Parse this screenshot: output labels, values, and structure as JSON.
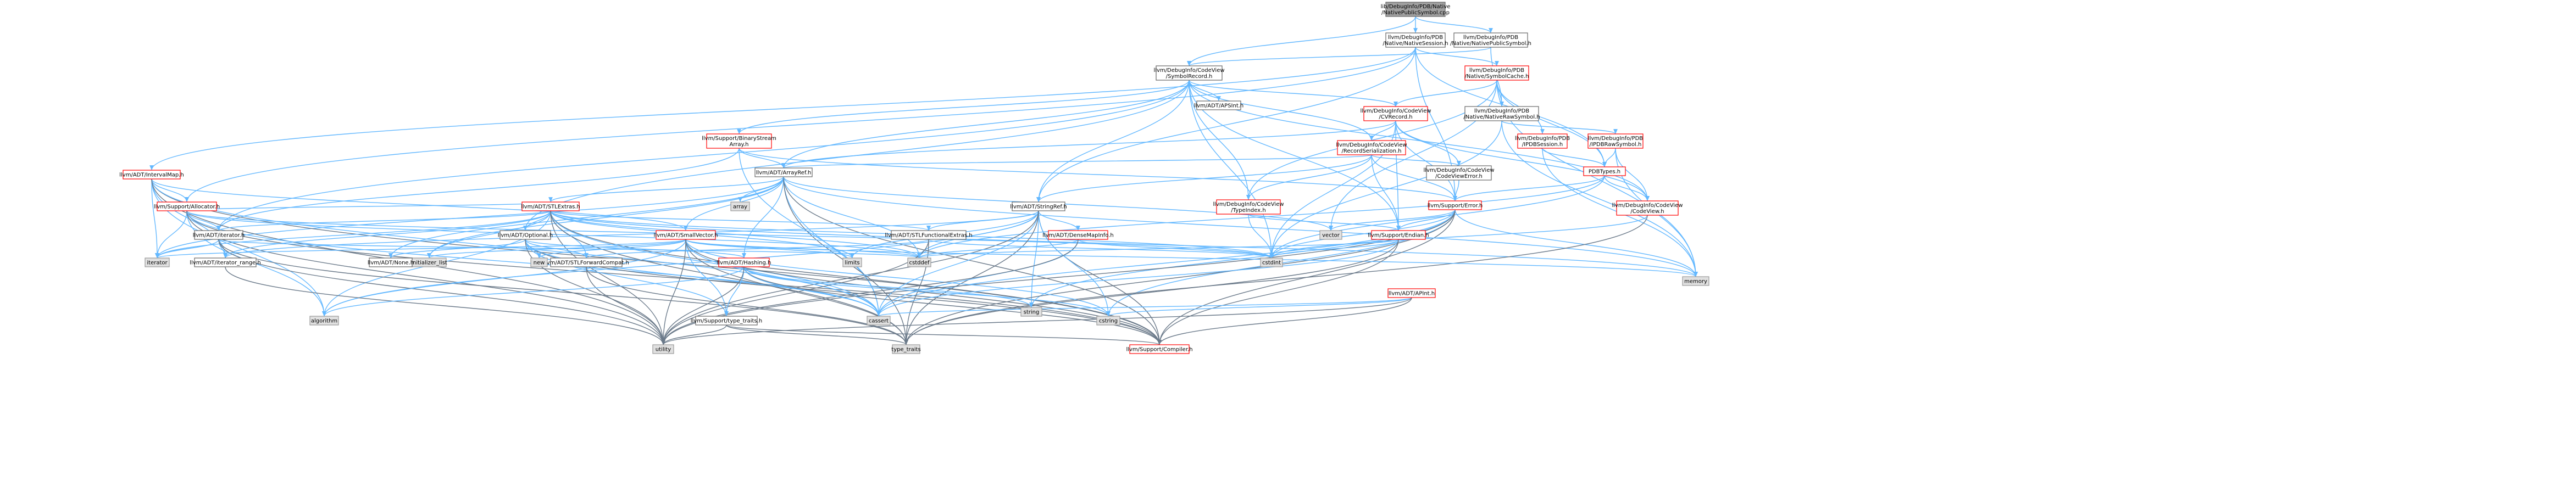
{
  "graph": {
    "nodes": [
      {
        "id": "root",
        "lines": [
          "lib/DebugInfo/PDB/Native",
          "/NativePublicSymbol.cpp"
        ],
        "style": "root"
      },
      {
        "id": "nativesession",
        "lines": [
          "llvm/DebugInfo/PDB",
          "/Native/NativeSession.h"
        ],
        "style": "normal"
      },
      {
        "id": "nativepublicsymbol",
        "lines": [
          "llvm/DebugInfo/PDB",
          "/Native/NativePublicSymbol.h"
        ],
        "style": "normal"
      },
      {
        "id": "symbolrecord",
        "lines": [
          "llvm/DebugInfo/CodeView",
          "/SymbolRecord.h"
        ],
        "style": "normal"
      },
      {
        "id": "symbolcache",
        "lines": [
          "llvm/DebugInfo/PDB",
          "/Native/SymbolCache.h"
        ],
        "style": "red"
      },
      {
        "id": "nativerawsymbol",
        "lines": [
          "llvm/DebugInfo/PDB",
          "/Native/NativeRawSymbol.h"
        ],
        "style": "normal"
      },
      {
        "id": "intervalmap",
        "lines": [
          "llvm/ADT/IntervalMap.h"
        ],
        "style": "red"
      },
      {
        "id": "apsint",
        "lines": [
          "llvm/ADT/APSInt.h"
        ],
        "style": "normal"
      },
      {
        "id": "cvrecord",
        "lines": [
          "llvm/DebugInfo/CodeView",
          "/CVRecord.h"
        ],
        "style": "red"
      },
      {
        "id": "ipdbsession",
        "lines": [
          "llvm/DebugInfo/PDB",
          "/IPDBSession.h"
        ],
        "style": "red"
      },
      {
        "id": "ipdbrawsymbol",
        "lines": [
          "llvm/DebugInfo/PDB",
          "/IPDBRawSymbol.h"
        ],
        "style": "red"
      },
      {
        "id": "binarystreamarray",
        "lines": [
          "llvm/Support/BinaryStream",
          "Array.h"
        ],
        "style": "red"
      },
      {
        "id": "recordserialization",
        "lines": [
          "llvm/DebugInfo/CodeView",
          "/RecordSerialization.h"
        ],
        "style": "red"
      },
      {
        "id": "pdbtypes",
        "lines": [
          "PDBTypes.h"
        ],
        "style": "red"
      },
      {
        "id": "arrayref",
        "lines": [
          "llvm/ADT/ArrayRef.h"
        ],
        "style": "normal"
      },
      {
        "id": "codeviewerror",
        "lines": [
          "llvm/DebugInfo/CodeView",
          "/CodeViewError.h"
        ],
        "style": "normal"
      },
      {
        "id": "allocator",
        "lines": [
          "llvm/Support/Allocator.h"
        ],
        "style": "red"
      },
      {
        "id": "stlextras",
        "lines": [
          "llvm/ADT/STLExtras.h"
        ],
        "style": "red"
      },
      {
        "id": "stringref",
        "lines": [
          "llvm/ADT/StringRef.h"
        ],
        "style": "normal"
      },
      {
        "id": "typeindex",
        "lines": [
          "llvm/DebugInfo/CodeView",
          "/TypeIndex.h"
        ],
        "style": "red"
      },
      {
        "id": "error",
        "lines": [
          "llvm/Support/Error.h"
        ],
        "style": "red"
      },
      {
        "id": "codeview",
        "lines": [
          "llvm/DebugInfo/CodeView",
          "/CodeView.h"
        ],
        "style": "red"
      },
      {
        "id": "array",
        "lines": [
          "array"
        ],
        "style": "grey"
      },
      {
        "id": "iteratorh",
        "lines": [
          "llvm/ADT/iterator.h"
        ],
        "style": "normal"
      },
      {
        "id": "optional",
        "lines": [
          "llvm/ADT/Optional.h"
        ],
        "style": "normal"
      },
      {
        "id": "smallvector",
        "lines": [
          "llvm/ADT/SmallVector.h"
        ],
        "style": "red"
      },
      {
        "id": "stlfunctionalextras",
        "lines": [
          "llvm/ADT/STLFunctionalExtras.h"
        ],
        "style": "normal"
      },
      {
        "id": "densemapinfo",
        "lines": [
          "llvm/ADT/DenseMapInfo.h"
        ],
        "style": "red"
      },
      {
        "id": "endian",
        "lines": [
          "llvm/Support/Endian.h"
        ],
        "style": "red"
      },
      {
        "id": "vector",
        "lines": [
          "vector"
        ],
        "style": "grey"
      },
      {
        "id": "iterator",
        "lines": [
          "iterator"
        ],
        "style": "grey"
      },
      {
        "id": "iteratorrange",
        "lines": [
          "llvm/ADT/iterator_range.h"
        ],
        "style": "normal"
      },
      {
        "id": "initializerlist",
        "lines": [
          "initializer_list"
        ],
        "style": "grey"
      },
      {
        "id": "none",
        "lines": [
          "llvm/ADT/None.h"
        ],
        "style": "normal"
      },
      {
        "id": "stlforwardcompat",
        "lines": [
          "llvm/ADT/STLForwardCompat.h"
        ],
        "style": "normal"
      },
      {
        "id": "new",
        "lines": [
          "new"
        ],
        "style": "grey"
      },
      {
        "id": "hashing",
        "lines": [
          "llvm/ADT/Hashing.h"
        ],
        "style": "red"
      },
      {
        "id": "limits",
        "lines": [
          "limits"
        ],
        "style": "grey"
      },
      {
        "id": "cstddef",
        "lines": [
          "cstddef"
        ],
        "style": "grey"
      },
      {
        "id": "aphint",
        "lines": [
          "llvm/ADT/APInt.h"
        ],
        "style": "red"
      },
      {
        "id": "cstdint",
        "lines": [
          "cstdint"
        ],
        "style": "grey"
      },
      {
        "id": "memory",
        "lines": [
          "memory"
        ],
        "style": "grey"
      },
      {
        "id": "algorithm",
        "lines": [
          "algorithm"
        ],
        "style": "grey"
      },
      {
        "id": "typetraitsh",
        "lines": [
          "llvm/Support/type_traits.h"
        ],
        "style": "normal"
      },
      {
        "id": "cassert",
        "lines": [
          "cassert"
        ],
        "style": "grey"
      },
      {
        "id": "string",
        "lines": [
          "string"
        ],
        "style": "grey"
      },
      {
        "id": "cstring",
        "lines": [
          "cstring"
        ],
        "style": "grey"
      },
      {
        "id": "utility",
        "lines": [
          "utility"
        ],
        "style": "grey"
      },
      {
        "id": "typetraits",
        "lines": [
          "type_traits"
        ],
        "style": "grey"
      },
      {
        "id": "compiler",
        "lines": [
          "llvm/Support/Compiler.h"
        ],
        "style": "red"
      }
    ]
  },
  "colors": {
    "root_fill": "#a0a0a0",
    "node_border": "#666666",
    "red_border": "#ff0000",
    "grey_fill": "#e0e0e0",
    "grey_border": "#999999",
    "edge": "#63b8ff",
    "edge_dark": "#6b7a8a"
  }
}
